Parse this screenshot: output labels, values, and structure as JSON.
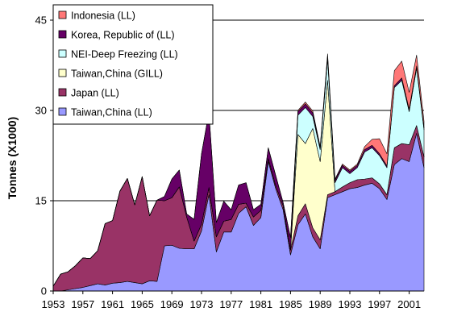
{
  "chart_data": {
    "type": "area",
    "stacked": true,
    "ylabel": "Tonnes (X1000)",
    "xlabel": "",
    "title": "",
    "ylim": [
      0,
      45
    ],
    "yticks": [
      0,
      15,
      30,
      45
    ],
    "xlim": [
      1953,
      2003
    ],
    "xticks": [
      1953,
      1957,
      1961,
      1965,
      1969,
      1973,
      1977,
      1981,
      1985,
      1989,
      1993,
      1997,
      2001
    ],
    "grid": "horizontal",
    "legend_position": "top-left",
    "x": [
      1953,
      1954,
      1955,
      1956,
      1957,
      1958,
      1959,
      1960,
      1961,
      1962,
      1963,
      1964,
      1965,
      1966,
      1967,
      1968,
      1969,
      1970,
      1971,
      1972,
      1973,
      1974,
      1975,
      1976,
      1977,
      1978,
      1979,
      1980,
      1981,
      1982,
      1983,
      1984,
      1985,
      1986,
      1987,
      1988,
      1989,
      1990,
      1991,
      1992,
      1993,
      1994,
      1995,
      1996,
      1997,
      1998,
      1999,
      2000,
      2001,
      2002,
      2003
    ],
    "series": [
      {
        "name": "Taiwan,China (LL)",
        "color": "#9999ff",
        "values": [
          0,
          0,
          0.2,
          0.4,
          0.6,
          0.9,
          1.2,
          1.0,
          1.3,
          1.4,
          1.6,
          1.4,
          1.2,
          1.7,
          1.6,
          7.5,
          7.6,
          7.1,
          7.0,
          7.0,
          10.0,
          16.0,
          6.5,
          9.8,
          9.8,
          12.9,
          14.0,
          10.9,
          12.2,
          21.5,
          17.0,
          13.5,
          6.0,
          11.0,
          12.8,
          9.0,
          7.0,
          15.5,
          16.0,
          16.5,
          17.0,
          17.2,
          17.6,
          17.9,
          17.0,
          15.2,
          21.0,
          22.0,
          21.5,
          26.2,
          20.5
        ]
      },
      {
        "name": "Japan (LL)",
        "color": "#993366",
        "values": [
          0.8,
          2.8,
          3.0,
          3.8,
          4.9,
          4.5,
          5.5,
          10.2,
          10.4,
          15.2,
          17.1,
          12.9,
          17.8,
          10.8,
          13.5,
          7.5,
          7.9,
          10.2,
          5.3,
          1.3,
          1.1,
          1.2,
          2.5,
          1.8,
          2.1,
          1.5,
          0.6,
          1.4,
          1.2,
          0.5,
          0.5,
          0.7,
          0.8,
          1.5,
          1.7,
          1.5,
          1.5,
          0.5,
          0.5,
          0.8,
          1.0,
          1.3,
          1.0,
          0.9,
          0.8,
          0.8,
          2.8,
          2.5,
          2.8,
          1.3,
          1.8
        ]
      },
      {
        "name": "Taiwan,China (GILL)",
        "color": "#ffffcc",
        "values": [
          0,
          0,
          0,
          0,
          0,
          0,
          0,
          0,
          0,
          0,
          0,
          0,
          0,
          0,
          0,
          0,
          0,
          0,
          0,
          0,
          0,
          0,
          0,
          0,
          0,
          0,
          0,
          0,
          0,
          0,
          0,
          0,
          0,
          13.5,
          10.0,
          16.5,
          13.0,
          19.0,
          0,
          0,
          0,
          0,
          0,
          0,
          0,
          0,
          0,
          0,
          0,
          0,
          0
        ]
      },
      {
        "name": "NEI-Deep Freezing (LL)",
        "color": "#ccffff",
        "values": [
          0,
          0,
          0,
          0,
          0,
          0,
          0,
          0,
          0,
          0,
          0,
          0,
          0,
          0,
          0,
          0,
          0,
          0,
          0,
          0,
          0,
          0,
          0,
          0,
          0,
          0,
          0,
          0,
          0,
          0,
          0,
          0,
          0,
          3.2,
          6.0,
          2.0,
          2.0,
          3.5,
          1.5,
          3.2,
          1.5,
          2.0,
          4.5,
          5.0,
          4.7,
          4.5,
          10.0,
          10.5,
          5.5,
          9.5,
          4.5
        ]
      },
      {
        "name": "Korea, Republic of (LL)",
        "color": "#660066",
        "values": [
          0,
          0,
          0,
          0,
          0,
          0,
          0,
          0,
          0,
          0,
          0,
          0,
          0,
          0,
          0,
          0.7,
          3.1,
          2.8,
          0.5,
          3.6,
          11.7,
          12.5,
          2.4,
          3.3,
          1.6,
          3.2,
          3.4,
          1.2,
          1.0,
          1.8,
          1.7,
          0.5,
          2.1,
          0.6,
          0.6,
          0.6,
          0.3,
          0.6,
          0.4,
          0.4,
          0.4,
          0.4,
          0.4,
          0.4,
          0.3,
          0.3,
          0.3,
          0.4,
          0.4,
          0.4,
          0.3
        ]
      },
      {
        "name": "Indonesia (LL)",
        "color": "#ff7777",
        "values": [
          0,
          0,
          0,
          0,
          0,
          0,
          0,
          0,
          0,
          0,
          0,
          0,
          0,
          0,
          0,
          0,
          0,
          0,
          0,
          0,
          0,
          0,
          0,
          0,
          0,
          0,
          0,
          0,
          0,
          0,
          0,
          0,
          0,
          0.2,
          0.3,
          0.3,
          0.2,
          0.3,
          0.2,
          0.2,
          0.2,
          0.2,
          0.5,
          1.0,
          2.5,
          2.0,
          2.5,
          2.8,
          2.8,
          1.8,
          1.1
        ]
      }
    ],
    "legend_order": [
      "Indonesia (LL)",
      "Korea, Republic of (LL)",
      "NEI-Deep Freezing (LL)",
      "Taiwan,China (GILL)",
      "Japan (LL)",
      "Taiwan,China (LL)"
    ]
  }
}
